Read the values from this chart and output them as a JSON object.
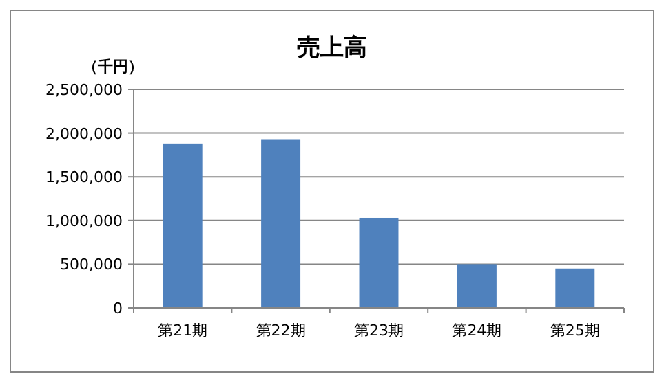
{
  "chart_data": {
    "type": "bar",
    "title": "売上高",
    "ylabel": "（千円）",
    "categories": [
      "第21期",
      "第22期",
      "第23期",
      "第24期",
      "第25期"
    ],
    "values": [
      1880000,
      1930000,
      1030000,
      500000,
      450000
    ],
    "color": "#4f81bd",
    "ylim": [
      0,
      2500000
    ],
    "yticks": [
      {
        "value": 0,
        "label": "0"
      },
      {
        "value": 500000,
        "label": "500,000"
      },
      {
        "value": 1000000,
        "label": "1,000,000"
      },
      {
        "value": 1500000,
        "label": "1,500,000"
      },
      {
        "value": 2000000,
        "label": "2,000,000"
      },
      {
        "value": 2500000,
        "label": "2,500,000"
      }
    ],
    "grid": "y"
  }
}
